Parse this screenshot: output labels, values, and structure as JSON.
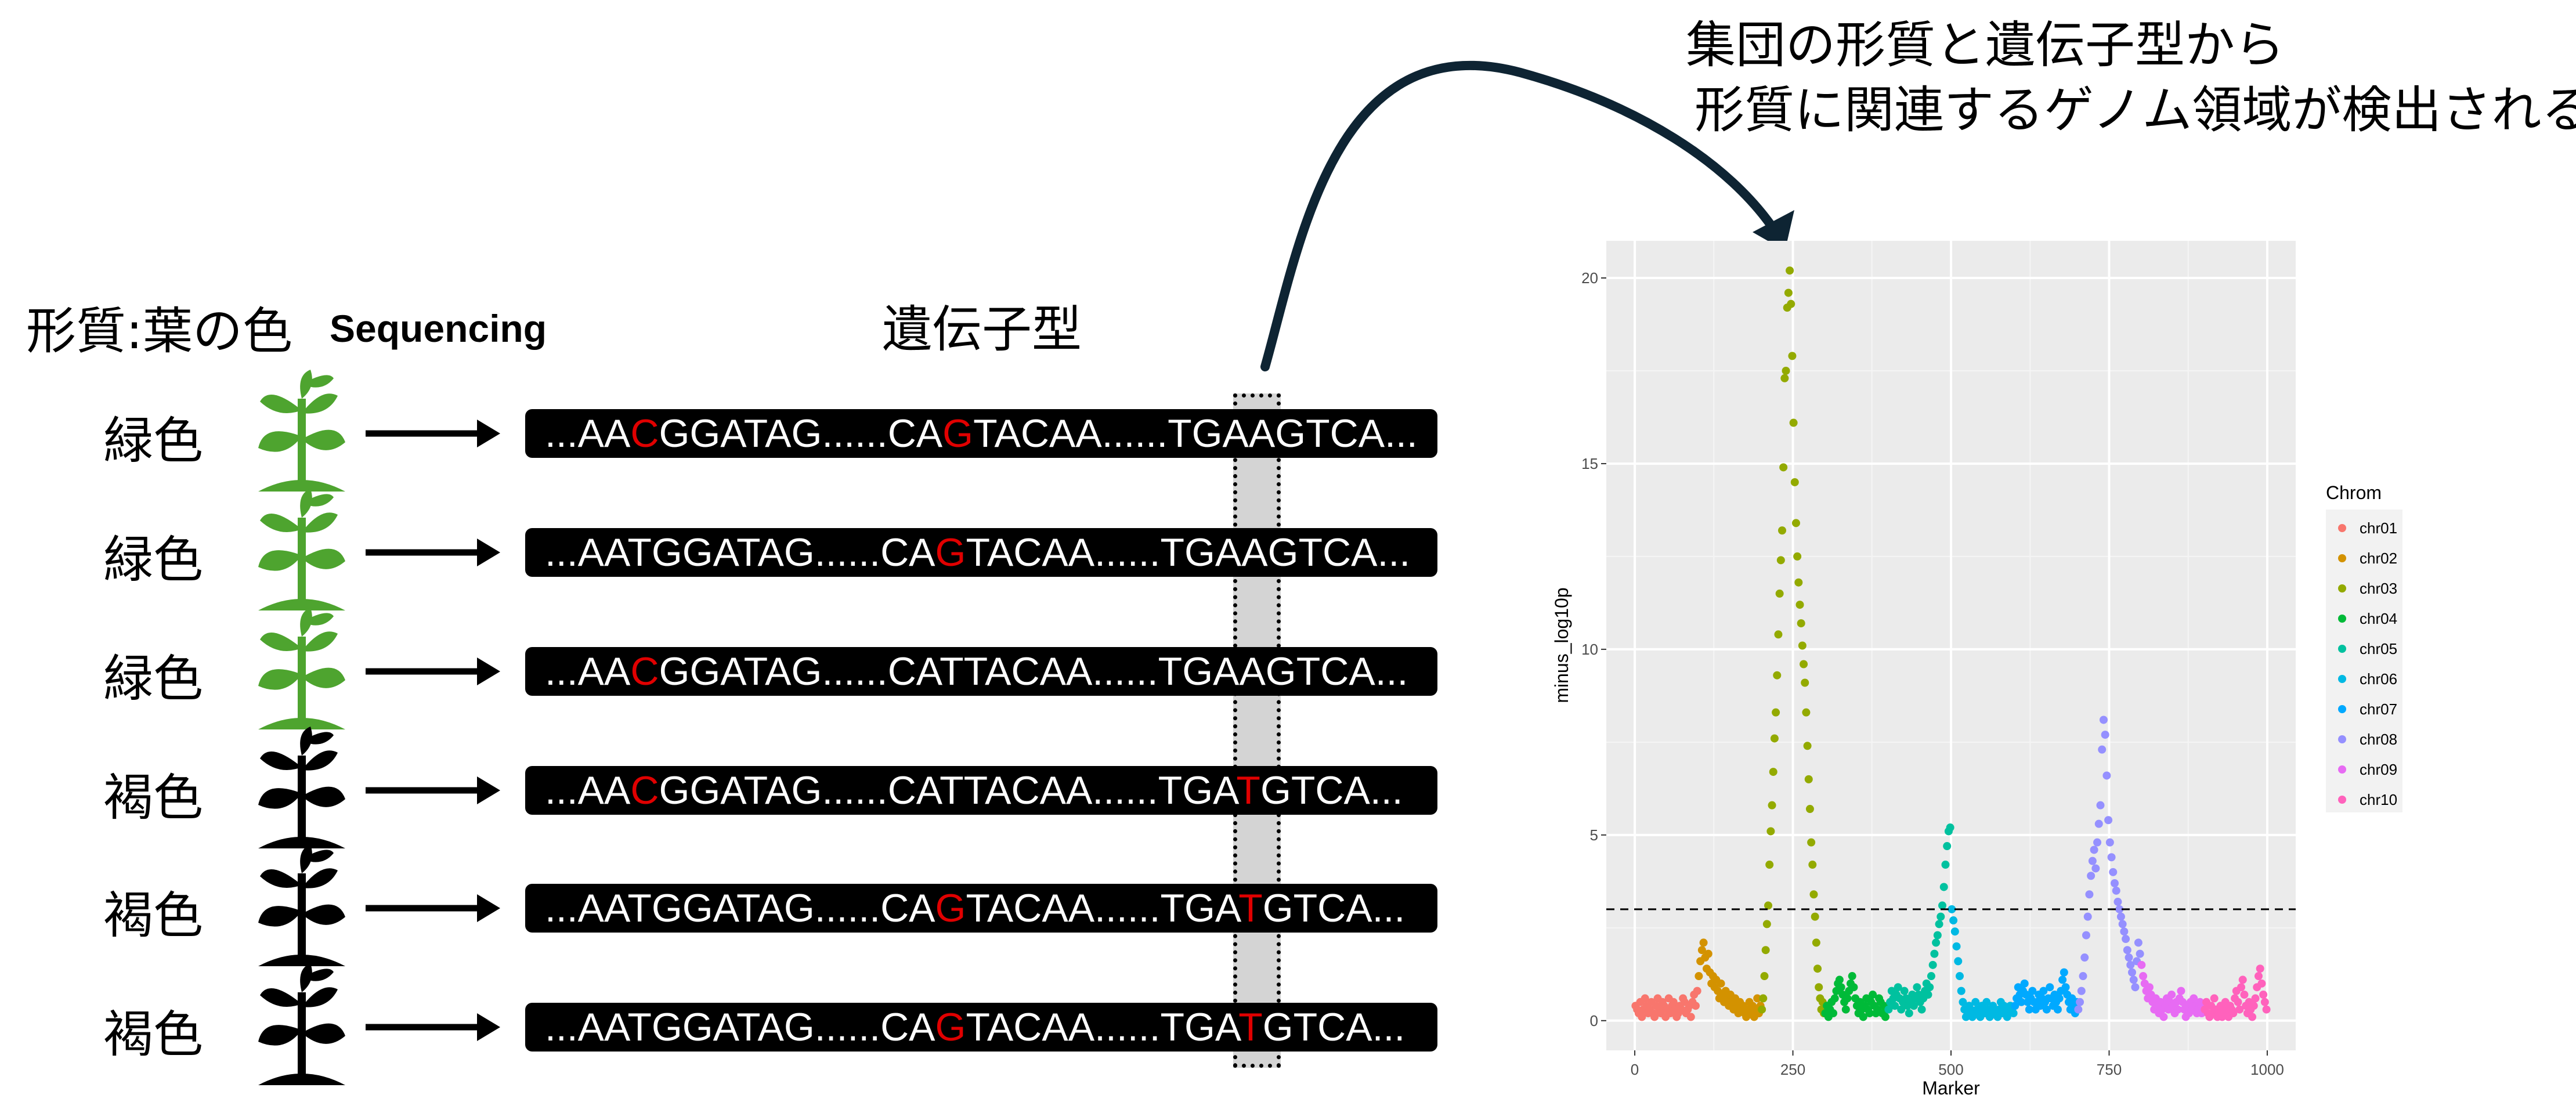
{
  "header": {
    "trait": "形質:葉の色",
    "sequencing": "Sequencing",
    "genotype": "遺伝子型"
  },
  "caption": {
    "line1": "集団の形質と遺伝子型から",
    "line2": "形質に関連するゲノム領域が検出される"
  },
  "rows": [
    {
      "label": "緑色",
      "plant_color": "#4ea42f",
      "segments": [
        {
          "t": "...AA"
        },
        {
          "t": "C",
          "snp": true
        },
        {
          "t": "GGATAG......CA"
        },
        {
          "t": "G",
          "snp": true
        },
        {
          "t": "TACAA......TGAAGTCA..."
        }
      ]
    },
    {
      "label": "緑色",
      "plant_color": "#4ea42f",
      "segments": [
        {
          "t": "...AATGGATAG......CA"
        },
        {
          "t": "G",
          "snp": true
        },
        {
          "t": "TACAA......TGAAGTCA..."
        }
      ]
    },
    {
      "label": "緑色",
      "plant_color": "#4ea42f",
      "segments": [
        {
          "t": "...AA"
        },
        {
          "t": "C",
          "snp": true
        },
        {
          "t": "GGATAG......CATTACAA......TGAAGTCA..."
        }
      ]
    },
    {
      "label": "褐色",
      "plant_color": "#000000",
      "segments": [
        {
          "t": "...AA"
        },
        {
          "t": "C",
          "snp": true
        },
        {
          "t": "GGATAG......CATTACAA......TGA"
        },
        {
          "t": "T",
          "snp": true
        },
        {
          "t": "GTCA..."
        }
      ]
    },
    {
      "label": "褐色",
      "plant_color": "#000000",
      "segments": [
        {
          "t": "...AATGGATAG......CA"
        },
        {
          "t": "G",
          "snp": true
        },
        {
          "t": "TACAA......TGA"
        },
        {
          "t": "T",
          "snp": true
        },
        {
          "t": "GTCA..."
        }
      ]
    },
    {
      "label": "褐色",
      "plant_color": "#000000",
      "segments": [
        {
          "t": "...AATGGATAG......CA"
        },
        {
          "t": "G",
          "snp": true
        },
        {
          "t": "TACAA......TGA"
        },
        {
          "t": "T",
          "snp": true
        },
        {
          "t": "GTCA..."
        }
      ]
    }
  ],
  "colors": {
    "snp": "#e00000",
    "green_plant": "#4ea42f",
    "brown_plant": "#000000",
    "highlight": "#d4d4d4",
    "arrow": "#0e2433"
  },
  "chart_data": {
    "type": "scatter",
    "xlabel": "Marker",
    "ylabel": "minus_log10p",
    "x_ticks": [
      0,
      250,
      500,
      750,
      1000
    ],
    "y_ticks": [
      0,
      5,
      10,
      15,
      20
    ],
    "xlim": [
      -45,
      1045
    ],
    "ylim": [
      -0.8,
      21.0
    ],
    "threshold": 3.0,
    "grid": true,
    "legend_title": "Chrom",
    "legend_position": "right",
    "series": [
      {
        "name": "chr01",
        "color": "#F8766D",
        "x_range": [
          0,
          100
        ],
        "values": [
          0.4,
          0.3,
          0.2,
          0.5,
          0.1,
          0.3,
          0.6,
          0.4,
          0.2,
          0.3,
          0.5,
          0.2,
          0.1,
          0.4,
          0.6,
          0.3,
          0.2,
          0.5,
          0.4,
          0.1,
          0.3,
          0.6,
          0.2,
          0.4,
          0.5,
          0.3,
          0.1,
          0.2,
          0.4,
          0.3,
          0.6,
          0.5,
          0.2,
          0.3,
          0.4,
          0.1,
          0.5,
          0.7,
          0.4,
          0.8
        ]
      },
      {
        "name": "chr02",
        "color": "#D39200",
        "x_range": [
          100,
          200
        ],
        "values": [
          1.2,
          1.6,
          1.9,
          2.1,
          1.7,
          1.4,
          1.8,
          1.3,
          1.0,
          1.2,
          0.9,
          1.1,
          0.8,
          0.6,
          1.0,
          0.7,
          0.5,
          0.8,
          0.6,
          0.4,
          0.7,
          0.5,
          0.3,
          0.6,
          0.4,
          0.2,
          0.5,
          0.3,
          0.4,
          0.2,
          0.1,
          0.3,
          0.5,
          0.2,
          0.4,
          0.1,
          0.3,
          0.6,
          0.2,
          0.4
        ]
      },
      {
        "name": "chr03",
        "color": "#93AA00",
        "x_range": [
          200,
          300
        ],
        "values": [
          0.3,
          0.6,
          1.2,
          1.9,
          2.6,
          3.1,
          4.2,
          5.1,
          5.8,
          6.7,
          7.6,
          8.3,
          9.3,
          10.4,
          11.5,
          12.4,
          13.2,
          14.9,
          17.3,
          17.5,
          19.2,
          19.6,
          20.2,
          19.3,
          17.9,
          16.1,
          14.5,
          13.4,
          12.5,
          11.8,
          11.2,
          10.7,
          10.1,
          9.6,
          9.1,
          8.3,
          7.4,
          6.5,
          5.7,
          4.8,
          4.2,
          3.4,
          2.8,
          2.1,
          1.4,
          0.9,
          0.6,
          0.3,
          0.5,
          0.2
        ]
      },
      {
        "name": "chr04",
        "color": "#00BA38",
        "x_range": [
          300,
          400
        ],
        "values": [
          0.2,
          0.4,
          0.1,
          0.3,
          0.5,
          0.2,
          0.6,
          0.8,
          1.0,
          1.1,
          0.9,
          0.7,
          0.5,
          0.3,
          0.6,
          0.8,
          1.0,
          1.2,
          0.9,
          0.6,
          0.4,
          0.2,
          0.5,
          0.3,
          0.1,
          0.4,
          0.6,
          0.3,
          0.2,
          0.5,
          0.7,
          0.4,
          0.2,
          0.3,
          0.6,
          0.5,
          0.2,
          0.4,
          0.1,
          0.3
        ]
      },
      {
        "name": "chr05",
        "color": "#00C19F",
        "x_range": [
          400,
          500
        ],
        "values": [
          0.3,
          0.5,
          0.8,
          0.6,
          0.4,
          0.7,
          0.9,
          0.6,
          0.3,
          0.5,
          0.8,
          0.6,
          0.4,
          0.2,
          0.5,
          0.7,
          0.4,
          0.6,
          0.9,
          0.7,
          0.5,
          0.3,
          0.6,
          0.8,
          1.0,
          0.7,
          0.9,
          1.2,
          1.5,
          1.8,
          2.1,
          2.3,
          2.6,
          2.8,
          3.1,
          3.6,
          4.2,
          4.7,
          5.1,
          5.2
        ]
      },
      {
        "name": "chr06",
        "color": "#00B9E3",
        "x_range": [
          500,
          600
        ],
        "values": [
          3.0,
          2.7,
          2.4,
          2.0,
          1.6,
          1.2,
          0.8,
          0.5,
          0.3,
          0.1,
          0.2,
          0.4,
          0.3,
          0.1,
          0.2,
          0.5,
          0.3,
          0.2,
          0.1,
          0.4,
          0.3,
          0.2,
          0.5,
          0.3,
          0.1,
          0.2,
          0.4,
          0.3,
          0.2,
          0.1,
          0.3,
          0.5,
          0.2,
          0.4,
          0.3,
          0.1,
          0.2,
          0.4,
          0.3,
          0.2
        ]
      },
      {
        "name": "chr07",
        "color": "#00A9FF",
        "x_range": [
          600,
          700
        ],
        "values": [
          0.4,
          0.6,
          0.9,
          0.7,
          0.5,
          0.8,
          1.0,
          0.7,
          0.5,
          0.3,
          0.6,
          0.8,
          0.5,
          0.3,
          0.5,
          0.7,
          0.4,
          0.6,
          0.8,
          0.5,
          0.3,
          0.6,
          0.9,
          0.6,
          0.4,
          0.7,
          0.5,
          0.3,
          0.6,
          0.8,
          1.1,
          1.3,
          0.9,
          0.7,
          0.5,
          0.3,
          0.6,
          0.4,
          0.2,
          0.5
        ]
      },
      {
        "name": "chr08",
        "color": "#9590FF",
        "x_range": [
          700,
          800
        ],
        "values": [
          0.3,
          0.5,
          0.8,
          1.2,
          1.7,
          2.3,
          2.8,
          3.4,
          3.9,
          4.3,
          4.6,
          4.1,
          4.8,
          5.3,
          5.8,
          7.3,
          8.1,
          7.7,
          6.6,
          5.4,
          4.8,
          4.4,
          4.0,
          3.7,
          3.5,
          3.2,
          3.0,
          2.8,
          2.6,
          2.4,
          2.2,
          1.9,
          1.7,
          1.5,
          1.3,
          1.1,
          0.9,
          1.6,
          2.1,
          1.8
        ]
      },
      {
        "name": "chr09",
        "color": "#E76BF3",
        "x_range": [
          800,
          900
        ],
        "values": [
          1.5,
          1.2,
          1.0,
          0.8,
          0.6,
          0.9,
          0.7,
          0.5,
          0.3,
          0.6,
          0.4,
          0.2,
          0.5,
          0.3,
          0.1,
          0.4,
          0.6,
          0.3,
          0.5,
          0.7,
          0.4,
          0.2,
          0.5,
          0.3,
          0.6,
          0.8,
          0.5,
          0.3,
          0.1,
          0.4,
          0.2,
          0.5,
          0.3,
          0.6,
          0.4,
          0.2,
          0.3,
          0.5,
          0.2,
          0.4
        ]
      },
      {
        "name": "chr10",
        "color": "#FF62BC",
        "x_range": [
          900,
          1000
        ],
        "values": [
          0.3,
          0.5,
          0.2,
          0.1,
          0.4,
          0.2,
          0.6,
          0.3,
          0.1,
          0.2,
          0.4,
          0.1,
          0.3,
          0.5,
          0.2,
          0.1,
          0.4,
          0.3,
          0.2,
          0.6,
          0.8,
          0.5,
          0.3,
          0.9,
          1.1,
          0.7,
          0.4,
          0.2,
          0.5,
          0.3,
          0.1,
          0.4,
          0.6,
          0.9,
          1.2,
          1.4,
          1.0,
          0.7,
          0.5,
          0.3
        ]
      }
    ]
  }
}
